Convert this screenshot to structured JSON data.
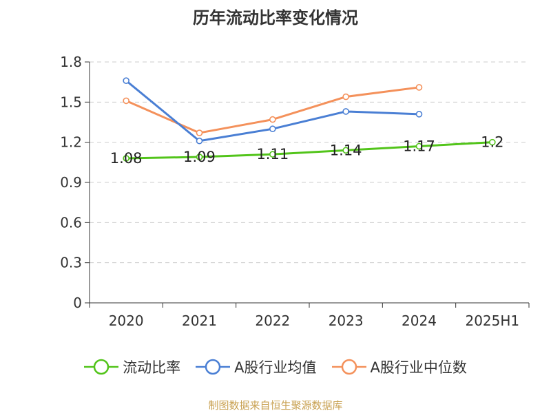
{
  "chart_data": {
    "type": "line",
    "title": "历年流动比率变化情况",
    "categories": [
      "2020",
      "2021",
      "2022",
      "2023",
      "2024",
      "2025H1"
    ],
    "ylim": [
      0,
      1.8
    ],
    "yticks": [
      "0",
      "0.3",
      "0.6",
      "0.9",
      "1.2",
      "1.5",
      "1.8"
    ],
    "grid": true,
    "legend_position": "bottom",
    "series": [
      {
        "name": "流动比率",
        "color": "#52c41a",
        "values": [
          1.08,
          1.09,
          1.11,
          1.14,
          1.17,
          1.2
        ],
        "labels": [
          "1.08",
          "1.09",
          "1.11",
          "1.14",
          "1.17",
          "1.2"
        ]
      },
      {
        "name": "A股行业均值",
        "color": "#4a7fd4",
        "values": [
          1.66,
          1.21,
          1.3,
          1.43,
          1.41,
          null
        ]
      },
      {
        "name": "A股行业中位数",
        "color": "#f4915b",
        "values": [
          1.51,
          1.27,
          1.37,
          1.54,
          1.61,
          null
        ]
      }
    ]
  },
  "source": "制图数据来自恒生聚源数据库"
}
